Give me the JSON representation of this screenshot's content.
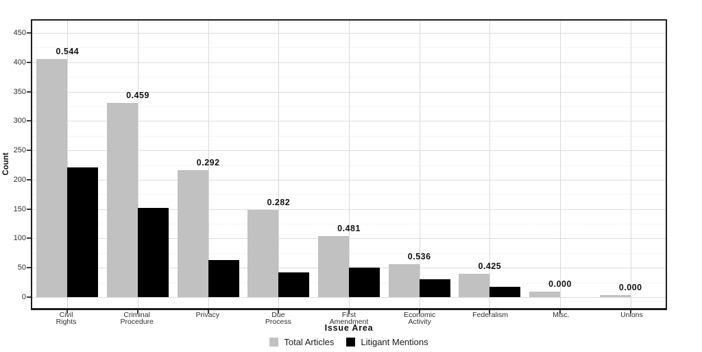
{
  "chart_data": {
    "type": "bar",
    "title": "",
    "xlabel": "Issue Area",
    "ylabel": "Count",
    "categories": [
      [
        "Civil",
        "Rights"
      ],
      [
        "Criminal",
        "Procedure"
      ],
      [
        "Privacy"
      ],
      [
        "Due",
        "Process"
      ],
      [
        "First",
        "Amendment"
      ],
      [
        "Economic",
        "Activity"
      ],
      [
        "Federalism"
      ],
      [
        "Misc."
      ],
      [
        "Unions"
      ]
    ],
    "series": [
      {
        "name": "Total Articles",
        "color": "#c1c1c1",
        "values": [
          406,
          331,
          216,
          149,
          104,
          56,
          40,
          9,
          4
        ]
      },
      {
        "name": "Litigant Mentions",
        "color": "#000000",
        "values": [
          221,
          152,
          63,
          42,
          50,
          30,
          17,
          0,
          0
        ]
      }
    ],
    "bar_labels": [
      "0.544",
      "0.459",
      "0.292",
      "0.282",
      "0.481",
      "0.536",
      "0.425",
      "0.000",
      "0.000"
    ],
    "ylim": [
      0,
      450
    ],
    "yticks": [
      0,
      50,
      100,
      150,
      200,
      250,
      300,
      350,
      400,
      450
    ],
    "minor_tick_step": 25,
    "grid": "major+minor, vertical category gridlines",
    "legend_position": "bottom-center"
  },
  "colors": {
    "total_articles": "#c1c1c1",
    "litigant_mentions": "#000000",
    "grid_major": "#dcdcdc",
    "grid_minor": "#ececec",
    "plot_border": "#1c1c1c",
    "tick_text": "#2e2e2e",
    "label_text": "#111111"
  }
}
